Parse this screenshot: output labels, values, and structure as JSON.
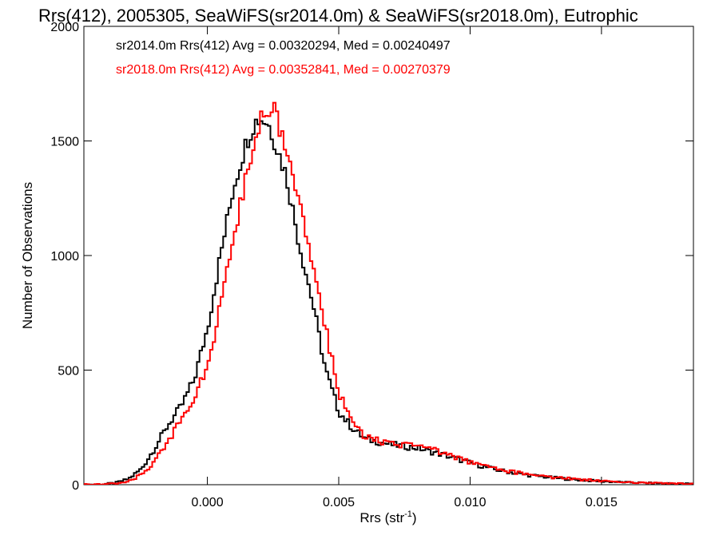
{
  "chart_data": {
    "type": "line",
    "title": "Rrs(412), 2005305, SeaWiFS(sr2014.0m) & SeaWiFS(sr2018.0m), Eutrophic",
    "xlabel": "Rrs (str",
    "xlabel_sup": "-1",
    "xlabel_end": ")",
    "ylabel": "Number of Observations",
    "xlim": [
      -0.0047,
      0.0185
    ],
    "ylim": [
      0,
      2000
    ],
    "x_ticks": [
      0.0,
      0.005,
      0.01,
      0.015
    ],
    "x_tick_labels": [
      "0.000",
      "0.005",
      "0.010",
      "0.015"
    ],
    "y_ticks": [
      0,
      500,
      1000,
      1500,
      2000
    ],
    "y_tick_labels": [
      "0",
      "500",
      "1000",
      "1500",
      "2000"
    ],
    "grid": false,
    "legend": "top-left",
    "series": [
      {
        "name": "sr2014.0m Rrs(412) Avg = 0.00320294, Med = 0.00240497",
        "color": "#000000",
        "points": [
          [
            -0.0047,
            0
          ],
          [
            -0.004,
            2
          ],
          [
            -0.0035,
            8
          ],
          [
            -0.003,
            25
          ],
          [
            -0.0025,
            70
          ],
          [
            -0.002,
            160
          ],
          [
            -0.0015,
            260
          ],
          [
            -0.001,
            340
          ],
          [
            -0.0005,
            460
          ],
          [
            0.0,
            680
          ],
          [
            0.0005,
            1000
          ],
          [
            0.001,
            1300
          ],
          [
            0.0015,
            1500
          ],
          [
            0.0018,
            1580
          ],
          [
            0.002,
            1600
          ],
          [
            0.0023,
            1580
          ],
          [
            0.0025,
            1520
          ],
          [
            0.003,
            1350
          ],
          [
            0.0035,
            1050
          ],
          [
            0.004,
            800
          ],
          [
            0.0045,
            500
          ],
          [
            0.005,
            320
          ],
          [
            0.0055,
            250
          ],
          [
            0.006,
            200
          ],
          [
            0.007,
            175
          ],
          [
            0.008,
            160
          ],
          [
            0.009,
            130
          ],
          [
            0.01,
            95
          ],
          [
            0.011,
            65
          ],
          [
            0.012,
            45
          ],
          [
            0.013,
            32
          ],
          [
            0.014,
            22
          ],
          [
            0.015,
            15
          ],
          [
            0.016,
            10
          ],
          [
            0.017,
            7
          ],
          [
            0.018,
            5
          ],
          [
            0.0185,
            4
          ]
        ]
      },
      {
        "name": "sr2018.0m Rrs(412) Avg = 0.00352841, Med = 0.00270379",
        "color": "#ff0000",
        "points": [
          [
            -0.0047,
            0
          ],
          [
            -0.004,
            1
          ],
          [
            -0.0035,
            5
          ],
          [
            -0.003,
            15
          ],
          [
            -0.0025,
            45
          ],
          [
            -0.002,
            100
          ],
          [
            -0.0015,
            190
          ],
          [
            -0.001,
            280
          ],
          [
            -0.0005,
            380
          ],
          [
            0.0,
            520
          ],
          [
            0.0005,
            780
          ],
          [
            0.001,
            1080
          ],
          [
            0.0015,
            1370
          ],
          [
            0.002,
            1580
          ],
          [
            0.0023,
            1650
          ],
          [
            0.0025,
            1640
          ],
          [
            0.003,
            1480
          ],
          [
            0.0035,
            1250
          ],
          [
            0.004,
            950
          ],
          [
            0.0045,
            680
          ],
          [
            0.005,
            400
          ],
          [
            0.0055,
            280
          ],
          [
            0.006,
            205
          ],
          [
            0.007,
            180
          ],
          [
            0.008,
            168
          ],
          [
            0.009,
            140
          ],
          [
            0.01,
            100
          ],
          [
            0.011,
            70
          ],
          [
            0.012,
            48
          ],
          [
            0.013,
            34
          ],
          [
            0.014,
            24
          ],
          [
            0.015,
            17
          ],
          [
            0.016,
            11
          ],
          [
            0.017,
            8
          ],
          [
            0.018,
            5
          ],
          [
            0.0185,
            4
          ]
        ]
      }
    ]
  }
}
